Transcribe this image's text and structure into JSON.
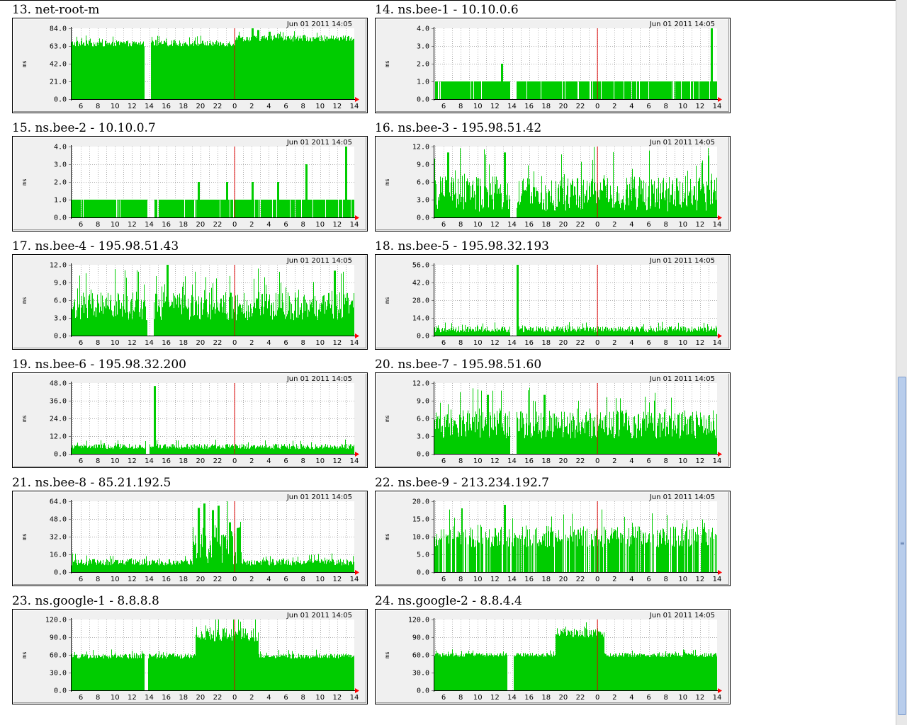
{
  "colors": {
    "frame_outer": "#000000",
    "frame_bg": "#f0f0f0",
    "plot_bg": "#ffffff",
    "grid": "#b0b0b0",
    "bars": "#00cc00",
    "now_line": "#dd0000",
    "arrow": "#ff0000",
    "text": "#000000"
  },
  "chart_data": [
    {
      "type": "bar",
      "title": "13. net-root-m",
      "timestamp": "Jun 01 2011 14:05",
      "ylabel": "ms",
      "yticks": [
        "84.0",
        "63.0",
        "42.0",
        "21.0",
        "0.0"
      ],
      "ylim": [
        0,
        84
      ],
      "xticks": [
        "6",
        "8",
        "10",
        "12",
        "14",
        "16",
        "18",
        "20",
        "22",
        "0",
        "2",
        "4",
        "6",
        "8",
        "10",
        "12",
        "14"
      ],
      "profile": {
        "base": 66,
        "noise": 6,
        "spikes": [
          {
            "x": 0.64,
            "y": 84
          },
          {
            "x": 0.66,
            "y": 82
          },
          {
            "x": 0.7,
            "y": 80
          }
        ],
        "gap": [
          0.26,
          0.28
        ],
        "segments": [
          {
            "from": 0.58,
            "to": 1.0,
            "base": 72
          }
        ]
      }
    },
    {
      "type": "bar",
      "title": "14. ns.bee-1 - 10.10.0.6",
      "timestamp": "Jun 01 2011 14:05",
      "ylabel": "ms",
      "yticks": [
        "4.0",
        "3.0",
        "2.0",
        "1.0",
        "0.0"
      ],
      "ylim": [
        0,
        4
      ],
      "xticks": [
        "6",
        "8",
        "10",
        "12",
        "14",
        "16",
        "18",
        "20",
        "22",
        "0",
        "2",
        "4",
        "6",
        "8",
        "10",
        "12",
        "14"
      ],
      "profile": {
        "base": 1,
        "noise": 0,
        "spikes": [
          {
            "x": 0.24,
            "y": 2
          },
          {
            "x": 0.98,
            "y": 4
          }
        ],
        "gap": [
          0.27,
          0.29
        ],
        "dropouts": 0.08
      }
    },
    {
      "type": "bar",
      "title": "15. ns.bee-2 - 10.10.0.7",
      "timestamp": "Jun 01 2011 14:05",
      "ylabel": "ms",
      "yticks": [
        "4.0",
        "3.0",
        "2.0",
        "1.0",
        "0.0"
      ],
      "ylim": [
        0,
        4
      ],
      "xticks": [
        "6",
        "8",
        "10",
        "12",
        "14",
        "16",
        "18",
        "20",
        "22",
        "0",
        "2",
        "4",
        "6",
        "8",
        "10",
        "12",
        "14"
      ],
      "profile": {
        "base": 1,
        "noise": 0,
        "spikes": [
          {
            "x": 0.45,
            "y": 2
          },
          {
            "x": 0.55,
            "y": 2
          },
          {
            "x": 0.64,
            "y": 2
          },
          {
            "x": 0.73,
            "y": 2
          },
          {
            "x": 0.83,
            "y": 3
          },
          {
            "x": 0.97,
            "y": 4
          }
        ],
        "gap": [
          0.27,
          0.29
        ],
        "dropouts": 0.06
      }
    },
    {
      "type": "bar",
      "title": "16. ns.bee-3 - 195.98.51.42",
      "timestamp": "Jun 01 2011 14:05",
      "ylabel": "ms",
      "yticks": [
        "12.0",
        "9.0",
        "6.0",
        "3.0",
        "0.0"
      ],
      "ylim": [
        0,
        12
      ],
      "xticks": [
        "6",
        "8",
        "10",
        "12",
        "14",
        "16",
        "18",
        "20",
        "22",
        "0",
        "2",
        "4",
        "6",
        "8",
        "10",
        "12",
        "14"
      ],
      "profile": {
        "base": 4,
        "noise": 5,
        "spikes": [
          {
            "x": 0.05,
            "y": 11
          },
          {
            "x": 0.25,
            "y": 11
          }
        ],
        "gap": [
          0.27,
          0.29
        ]
      }
    },
    {
      "type": "bar",
      "title": "17. ns.bee-4 - 195.98.51.43",
      "timestamp": "Jun 01 2011 14:05",
      "ylabel": "ms",
      "yticks": [
        "12.0",
        "9.0",
        "6.0",
        "3.0",
        "0.0"
      ],
      "ylim": [
        0,
        12
      ],
      "xticks": [
        "6",
        "8",
        "10",
        "12",
        "14",
        "16",
        "18",
        "20",
        "22",
        "0",
        "2",
        "4",
        "6",
        "8",
        "10",
        "12",
        "14"
      ],
      "profile": {
        "base": 5,
        "noise": 4,
        "spikes": [
          {
            "x": 0.34,
            "y": 12
          },
          {
            "x": 0.93,
            "y": 11
          }
        ],
        "gap": [
          0.27,
          0.29
        ]
      }
    },
    {
      "type": "bar",
      "title": "18. ns.bee-5 - 195.98.32.193",
      "timestamp": "Jun 01 2011 14:05",
      "ylabel": "ms",
      "yticks": [
        "56.0",
        "42.0",
        "28.0",
        "14.0",
        "0.0"
      ],
      "ylim": [
        0,
        56
      ],
      "xticks": [
        "6",
        "8",
        "10",
        "12",
        "14",
        "16",
        "18",
        "20",
        "22",
        "0",
        "2",
        "4",
        "6",
        "8",
        "10",
        "12",
        "14"
      ],
      "profile": {
        "base": 5,
        "noise": 4,
        "spikes": [
          {
            "x": 0.295,
            "y": 56
          }
        ],
        "gap": [
          0.27,
          0.29
        ]
      }
    },
    {
      "type": "bar",
      "title": "19. ns.bee-6 - 195.98.32.200",
      "timestamp": "Jun 01 2011 14:05",
      "ylabel": "ms",
      "yticks": [
        "48.0",
        "36.0",
        "24.0",
        "12.0",
        "0.0"
      ],
      "ylim": [
        0,
        48
      ],
      "xticks": [
        "6",
        "8",
        "10",
        "12",
        "14",
        "16",
        "18",
        "20",
        "22",
        "0",
        "2",
        "4",
        "6",
        "8",
        "10",
        "12",
        "14"
      ],
      "profile": {
        "base": 5,
        "noise": 3,
        "spikes": [
          {
            "x": 0.295,
            "y": 46
          }
        ],
        "gap": [
          0.265,
          0.275
        ]
      }
    },
    {
      "type": "bar",
      "title": "20. ns.bee-7 - 195.98.51.60",
      "timestamp": "Jun 01 2011 14:05",
      "ylabel": "ms",
      "yticks": [
        "12.0",
        "9.0",
        "6.0",
        "3.0",
        "0.0"
      ],
      "ylim": [
        0,
        12
      ],
      "xticks": [
        "6",
        "8",
        "10",
        "12",
        "14",
        "16",
        "18",
        "20",
        "22",
        "0",
        "2",
        "4",
        "6",
        "8",
        "10",
        "12",
        "14"
      ],
      "profile": {
        "base": 5,
        "noise": 4,
        "spikes": [
          {
            "x": 0.19,
            "y": 10
          },
          {
            "x": 0.39,
            "y": 10
          }
        ],
        "gap": [
          0.27,
          0.29
        ]
      }
    },
    {
      "type": "bar",
      "title": "21. ns.bee-8 - 85.21.192.5",
      "timestamp": "Jun 01 2011 14:05",
      "ylabel": "ms",
      "yticks": [
        "64.0",
        "48.0",
        "32.0",
        "16.0",
        "0.0"
      ],
      "ylim": [
        0,
        64
      ],
      "xticks": [
        "6",
        "8",
        "10",
        "12",
        "14",
        "16",
        "18",
        "20",
        "22",
        "0",
        "2",
        "4",
        "6",
        "8",
        "10",
        "12",
        "14"
      ],
      "profile": {
        "base": 9,
        "noise": 5,
        "spikes": [
          {
            "x": 0.45,
            "y": 58
          },
          {
            "x": 0.47,
            "y": 62
          },
          {
            "x": 0.5,
            "y": 56
          },
          {
            "x": 0.52,
            "y": 60
          },
          {
            "x": 0.56,
            "y": 45
          },
          {
            "x": 0.59,
            "y": 40
          }
        ],
        "gap": [
          0.0,
          0.0
        ],
        "segments": [
          {
            "from": 0.43,
            "to": 0.6,
            "base": 25,
            "noise": 30
          }
        ]
      }
    },
    {
      "type": "bar",
      "title": "22. ns.bee-9 - 213.234.192.7",
      "timestamp": "Jun 01 2011 14:05",
      "ylabel": "ms",
      "yticks": [
        "20.0",
        "15.0",
        "10.0",
        "5.0",
        "0.0"
      ],
      "ylim": [
        0,
        20
      ],
      "xticks": [
        "6",
        "8",
        "10",
        "12",
        "14",
        "16",
        "18",
        "20",
        "22",
        "0",
        "2",
        "4",
        "6",
        "8",
        "10",
        "12",
        "14"
      ],
      "profile": {
        "base": 10,
        "noise": 5,
        "spikes": [
          {
            "x": 0.1,
            "y": 18
          },
          {
            "x": 0.25,
            "y": 19
          }
        ],
        "dropouts": 0.25
      }
    },
    {
      "type": "bar",
      "title": "23. ns.google-1 - 8.8.8.8",
      "timestamp": "Jun 01 2011 14:05",
      "ylabel": "ms",
      "yticks": [
        "120.0",
        "90.0",
        "60.0",
        "30.0",
        "0.0"
      ],
      "ylim": [
        0,
        120
      ],
      "xticks": [
        "6",
        "8",
        "10",
        "12",
        "14",
        "16",
        "18",
        "20",
        "22",
        "0",
        "2",
        "4",
        "6",
        "8",
        "10",
        "12",
        "14"
      ],
      "profile": {
        "base": 58,
        "noise": 7,
        "spikes": [],
        "gap": [
          0.26,
          0.27
        ],
        "segments": [
          {
            "from": 0.44,
            "to": 0.66,
            "base": 95,
            "noise": 20
          }
        ]
      }
    },
    {
      "type": "bar",
      "title": "24. ns.google-2 - 8.8.4.4",
      "timestamp": "Jun 01 2011 14:05",
      "ylabel": "ms",
      "yticks": [
        "120.0",
        "90.0",
        "60.0",
        "30.0",
        "0.0"
      ],
      "ylim": [
        0,
        120
      ],
      "xticks": [
        "6",
        "8",
        "10",
        "12",
        "14",
        "16",
        "18",
        "20",
        "22",
        "0",
        "2",
        "4",
        "6",
        "8",
        "10",
        "12",
        "14"
      ],
      "profile": {
        "base": 60,
        "noise": 6,
        "spikes": [],
        "gap": [
          0.26,
          0.28
        ],
        "segments": [
          {
            "from": 0.43,
            "to": 0.6,
            "base": 98,
            "noise": 14
          }
        ]
      }
    }
  ]
}
